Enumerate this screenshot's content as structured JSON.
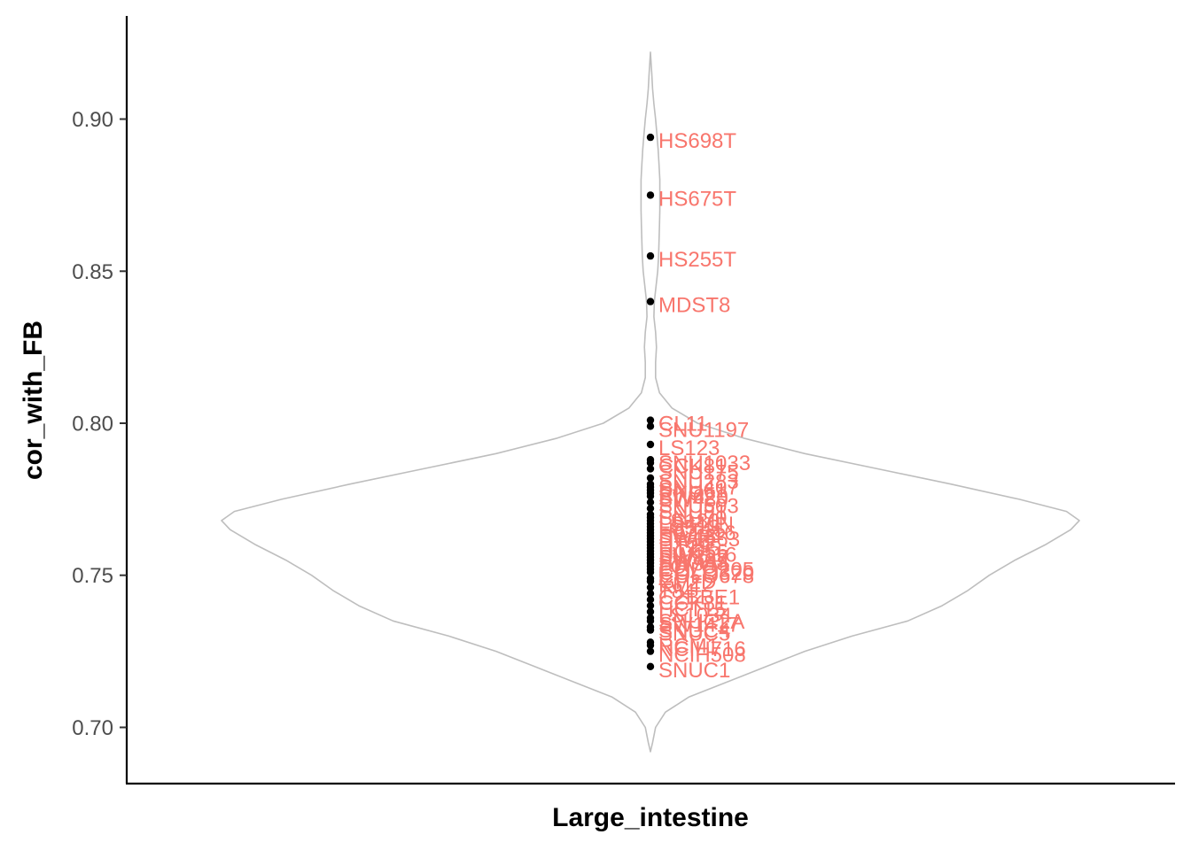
{
  "chart_data": {
    "type": "violin",
    "xlabel": "Large_intestine",
    "ylabel": "cor_with_FB",
    "category": "Large_intestine",
    "ylim": [
      0.691,
      0.922
    ],
    "yticks": [
      0.7,
      0.75,
      0.8,
      0.85,
      0.9
    ],
    "ytick_labels": [
      "0.70",
      "0.75",
      "0.80",
      "0.85",
      "0.90"
    ],
    "grid": false,
    "legend": "none",
    "colors": {
      "violin_outline": "#bebebe",
      "point": "#000000",
      "label": "#f8766d",
      "axis": "#000000"
    },
    "violin_density": [
      [
        0.692,
        0.0
      ],
      [
        0.695,
        0.005
      ],
      [
        0.7,
        0.012
      ],
      [
        0.705,
        0.035
      ],
      [
        0.71,
        0.09
      ],
      [
        0.715,
        0.18
      ],
      [
        0.72,
        0.27
      ],
      [
        0.725,
        0.36
      ],
      [
        0.73,
        0.47
      ],
      [
        0.735,
        0.6
      ],
      [
        0.74,
        0.68
      ],
      [
        0.745,
        0.74
      ],
      [
        0.75,
        0.79
      ],
      [
        0.755,
        0.85
      ],
      [
        0.76,
        0.92
      ],
      [
        0.765,
        0.98
      ],
      [
        0.768,
        1.0
      ],
      [
        0.771,
        0.97
      ],
      [
        0.775,
        0.86
      ],
      [
        0.78,
        0.7
      ],
      [
        0.785,
        0.53
      ],
      [
        0.79,
        0.36
      ],
      [
        0.795,
        0.22
      ],
      [
        0.8,
        0.11
      ],
      [
        0.805,
        0.05
      ],
      [
        0.81,
        0.021
      ],
      [
        0.815,
        0.012
      ],
      [
        0.82,
        0.012
      ],
      [
        0.825,
        0.014
      ],
      [
        0.83,
        0.012
      ],
      [
        0.835,
        0.008
      ],
      [
        0.84,
        0.009
      ],
      [
        0.845,
        0.013
      ],
      [
        0.85,
        0.017
      ],
      [
        0.855,
        0.019
      ],
      [
        0.86,
        0.02
      ],
      [
        0.865,
        0.021
      ],
      [
        0.87,
        0.022
      ],
      [
        0.875,
        0.022
      ],
      [
        0.88,
        0.022
      ],
      [
        0.885,
        0.02
      ],
      [
        0.89,
        0.018
      ],
      [
        0.895,
        0.015
      ],
      [
        0.9,
        0.012
      ],
      [
        0.905,
        0.008
      ],
      [
        0.91,
        0.005
      ],
      [
        0.915,
        0.003
      ],
      [
        0.922,
        0.0
      ]
    ],
    "points": [
      {
        "y": 0.894,
        "label": "HS698T"
      },
      {
        "y": 0.875,
        "label": "HS675T"
      },
      {
        "y": 0.855,
        "label": "HS255T"
      },
      {
        "y": 0.84,
        "label": "MDST8"
      },
      {
        "y": 0.801,
        "label": "CL11"
      },
      {
        "y": 0.799,
        "label": "SNU1197"
      },
      {
        "y": 0.793,
        "label": "LS123"
      },
      {
        "y": 0.788,
        "label": "SNU1033"
      },
      {
        "y": 0.787,
        "label": "CCK81"
      },
      {
        "y": 0.785,
        "label": "SNU175"
      },
      {
        "y": 0.782,
        "label": "SNU283"
      },
      {
        "y": 0.78,
        "label": "SNU407"
      },
      {
        "y": 0.779,
        "label": "SNU61"
      },
      {
        "y": 0.778,
        "label": "RKO"
      },
      {
        "y": 0.777,
        "label": "SW620"
      },
      {
        "y": 0.776,
        "label": "SW480"
      },
      {
        "y": 0.774,
        "label": "SNU503"
      },
      {
        "y": 0.772,
        "label": "SNU81"
      },
      {
        "y": 0.77,
        "label": "SNU70"
      },
      {
        "y": 0.769,
        "label": "LS180"
      },
      {
        "y": 0.768,
        "label": "LS411N"
      },
      {
        "y": 0.767,
        "label": "LS513"
      },
      {
        "y": 0.766,
        "label": "HCT15"
      },
      {
        "y": 0.765,
        "label": "HCT116"
      },
      {
        "y": 0.764,
        "label": "SW48"
      },
      {
        "y": 0.763,
        "label": "SW1463"
      },
      {
        "y": 0.762,
        "label": "HT55"
      },
      {
        "y": 0.761,
        "label": "HT29"
      },
      {
        "y": 0.76,
        "label": "HT115"
      },
      {
        "y": 0.759,
        "label": "HCC56"
      },
      {
        "y": 0.758,
        "label": "SW1116"
      },
      {
        "y": 0.757,
        "label": "SW837"
      },
      {
        "y": 0.756,
        "label": "SW403"
      },
      {
        "y": 0.755,
        "label": "SW948"
      },
      {
        "y": 0.754,
        "label": "LOVO"
      },
      {
        "y": 0.753,
        "label": "COLO205"
      },
      {
        "y": 0.752,
        "label": "COLO320"
      },
      {
        "y": 0.751,
        "label": "COLO678"
      },
      {
        "y": 0.749,
        "label": "GP2D"
      },
      {
        "y": 0.748,
        "label": "KM12"
      },
      {
        "y": 0.746,
        "label": "T84"
      },
      {
        "y": 0.744,
        "label": "C2BBE1"
      },
      {
        "y": 0.742,
        "label": "CCK81"
      },
      {
        "y": 0.74,
        "label": "HCT15"
      },
      {
        "y": 0.738,
        "label": "LS1034"
      },
      {
        "y": 0.736,
        "label": "SNUC2A"
      },
      {
        "y": 0.735,
        "label": "SW1417"
      },
      {
        "y": 0.733,
        "label": "SNUC4"
      },
      {
        "y": 0.732,
        "label": "SNUC5"
      },
      {
        "y": 0.728,
        "label": "RCM1"
      },
      {
        "y": 0.727,
        "label": "NCIH716"
      },
      {
        "y": 0.725,
        "label": "NCIH508"
      },
      {
        "y": 0.72,
        "label": "SNUC1"
      }
    ]
  }
}
